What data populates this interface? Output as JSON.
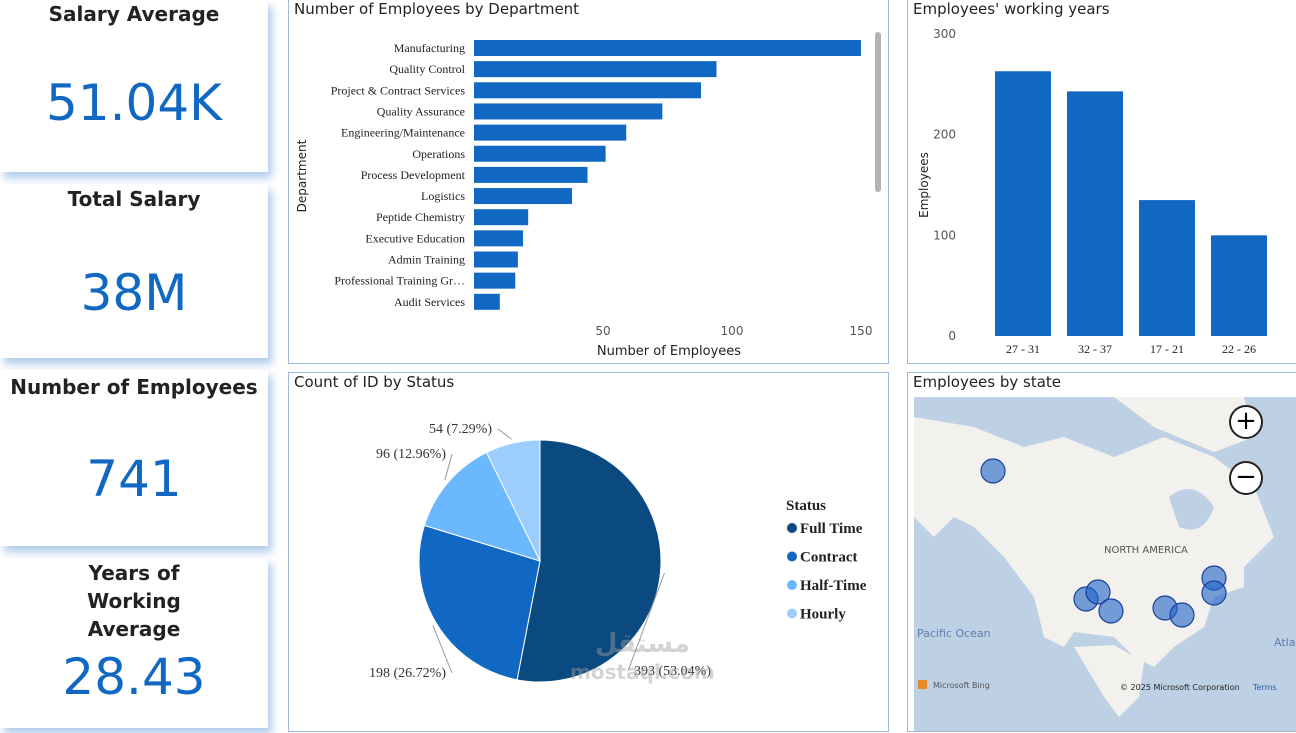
{
  "kpis": [
    {
      "title": "Salary Average",
      "value": "51.04K"
    },
    {
      "title": "Total Salary",
      "value": "38M"
    },
    {
      "title": "Number of Employees",
      "value": "741"
    },
    {
      "title": "Years of Working Average",
      "value": "28.43"
    }
  ],
  "colors": {
    "accent": "#1168c3",
    "full_time": "#0b4a80",
    "contract": "#1168c3",
    "half_time": "#6cb8ff",
    "hourly": "#9dcdfc"
  },
  "chart_data": [
    {
      "type": "bar",
      "orientation": "horizontal",
      "title": "Number of Employees by Department",
      "xlabel": "Number of Employees",
      "ylabel": "Department",
      "categories": [
        "Manufacturing",
        "Quality Control",
        "Project & Contract Services",
        "Quality Assurance",
        "Engineering/Maintenance",
        "Operations",
        "Process Development",
        "Logistics",
        "Peptide Chemistry",
        "Executive Education",
        "Admin Training",
        "Professional Training Gr…",
        "Audit Services"
      ],
      "values": [
        150,
        94,
        88,
        73,
        59,
        51,
        44,
        38,
        21,
        19,
        17,
        16,
        10
      ],
      "xticks": [
        "50",
        "100",
        "150"
      ],
      "xlim": [
        0,
        150
      ]
    },
    {
      "type": "bar",
      "title": "Employees' working years",
      "ylabel": "Employees",
      "categories": [
        "27 - 31",
        "32 - 37",
        "17 - 21",
        "22 - 26"
      ],
      "values": [
        263,
        243,
        135,
        100
      ],
      "yticks": [
        "0",
        "100",
        "200",
        "300"
      ],
      "ylim": [
        0,
        300
      ]
    },
    {
      "type": "pie",
      "title": "Count of ID by Status",
      "legend_title": "Status",
      "legend_position": "right",
      "labels": [
        "Full Time",
        "Contract",
        "Half-Time",
        "Hourly"
      ],
      "values": [
        393,
        198,
        96,
        54
      ],
      "data_labels": [
        "393 (53.04%)",
        "198 (26.72%)",
        "96 (12.96%)",
        "54 (7.29%)"
      ]
    }
  ],
  "map": {
    "title": "Employees by state",
    "region_label": "NORTH AMERICA",
    "ocean_label": "Pacific Ocean",
    "ocean_label_2": "Atla",
    "attribution": "© 2025 Microsoft Corporation",
    "terms": "Terms",
    "provider": "Microsoft Bing"
  },
  "watermark": {
    "arabic": "مستقل",
    "latin": "mostaql.com"
  }
}
